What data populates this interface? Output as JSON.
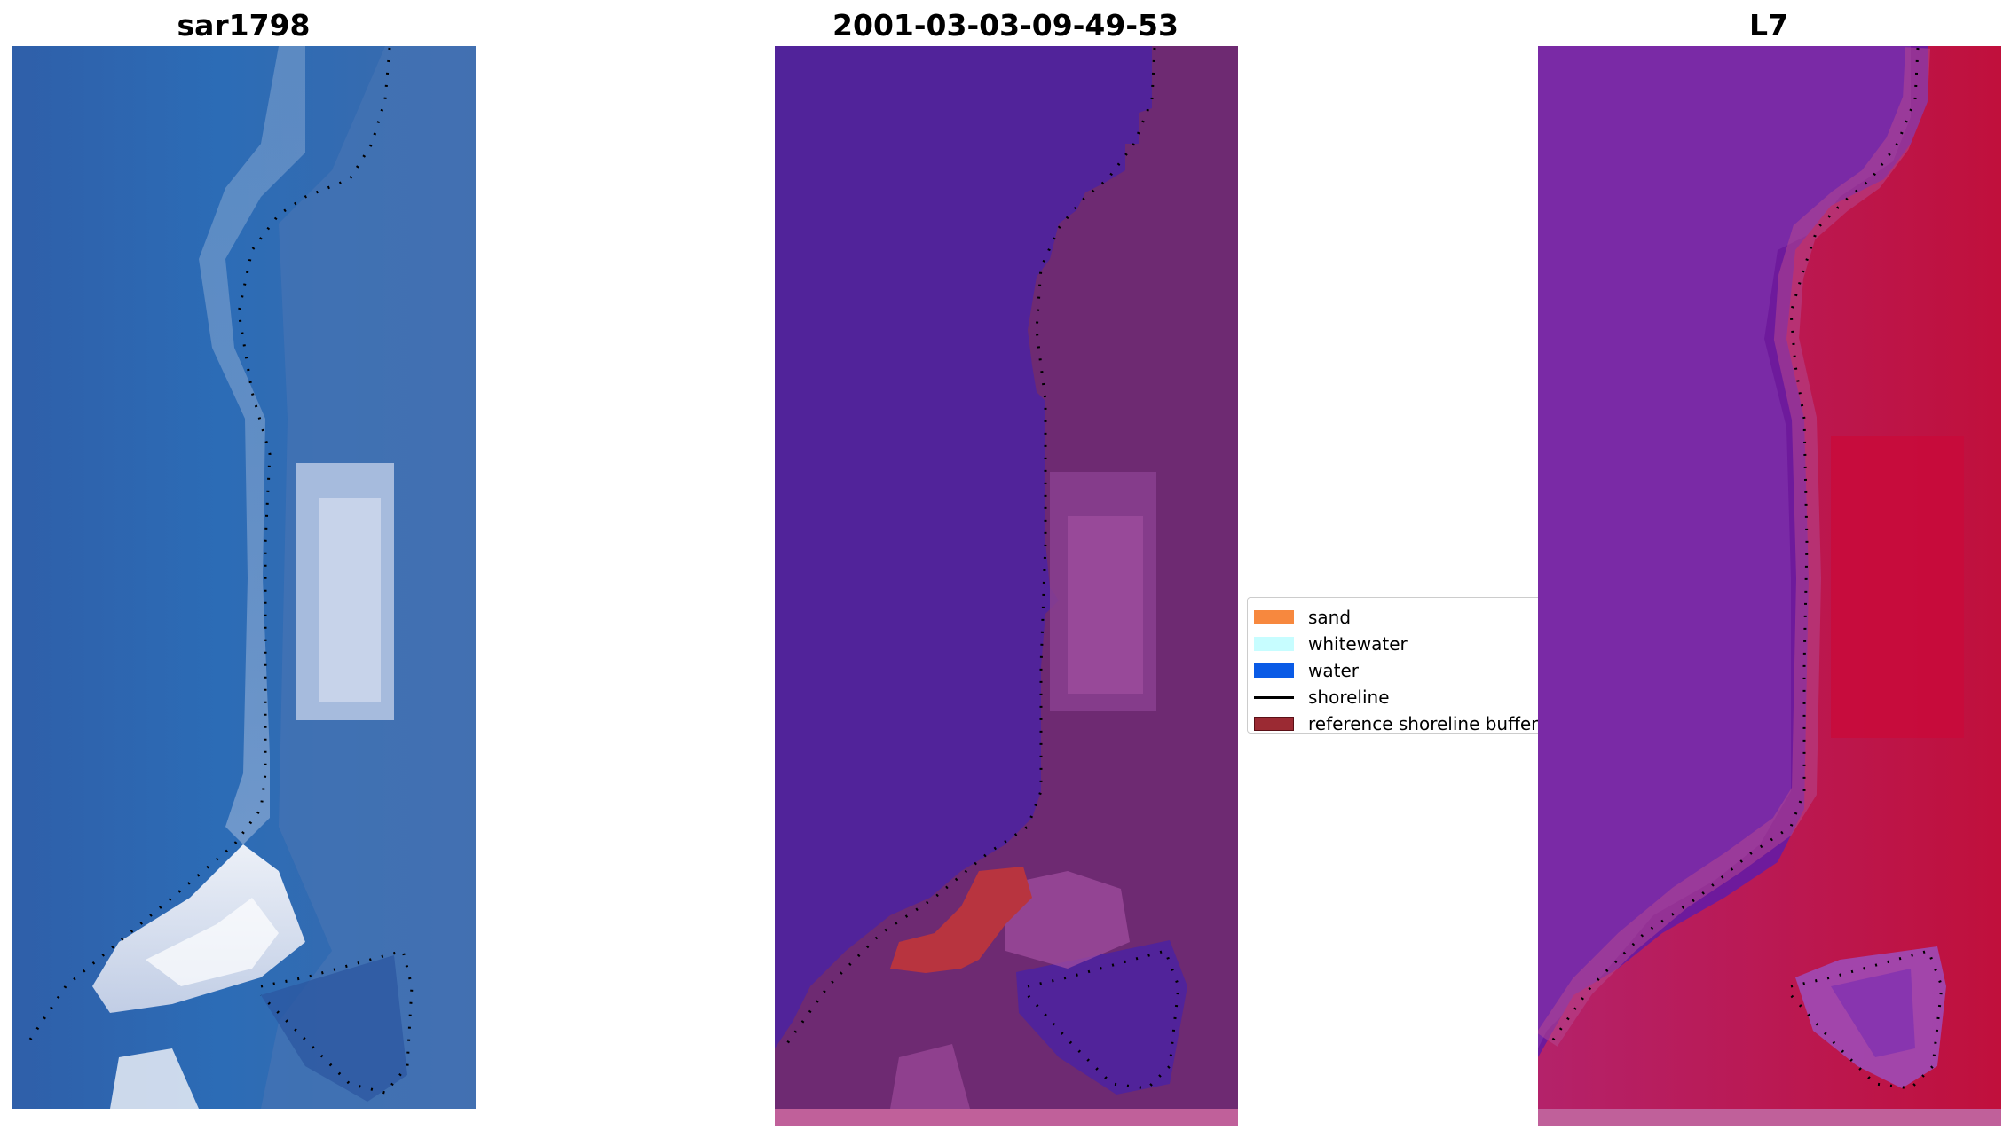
{
  "panels": [
    {
      "title": "sar1798",
      "kind": "rgb"
    },
    {
      "title": "2001-03-03-09-49-53",
      "kind": "classified"
    },
    {
      "title": "L7",
      "kind": "index"
    }
  ],
  "legend": {
    "items": [
      {
        "label": "sand",
        "color": "#f7883e",
        "type": "patch"
      },
      {
        "label": "whitewater",
        "color": "#c7fdff",
        "type": "patch"
      },
      {
        "label": "water",
        "color": "#0a5be6",
        "type": "patch"
      },
      {
        "label": "shoreline",
        "color": "#000000",
        "type": "line"
      },
      {
        "label": "reference shoreline buffer",
        "color": "#9b2a33",
        "type": "patch"
      }
    ]
  },
  "colors": {
    "water_class": "#51239a",
    "land_class": "#6e2a72",
    "buffer_pixels": "#b8343f",
    "index_high": "#c0103c",
    "index_low": "#6e1a9c",
    "rgb_water": "#2f64ad",
    "rgb_sand": "#dfe4f0"
  }
}
